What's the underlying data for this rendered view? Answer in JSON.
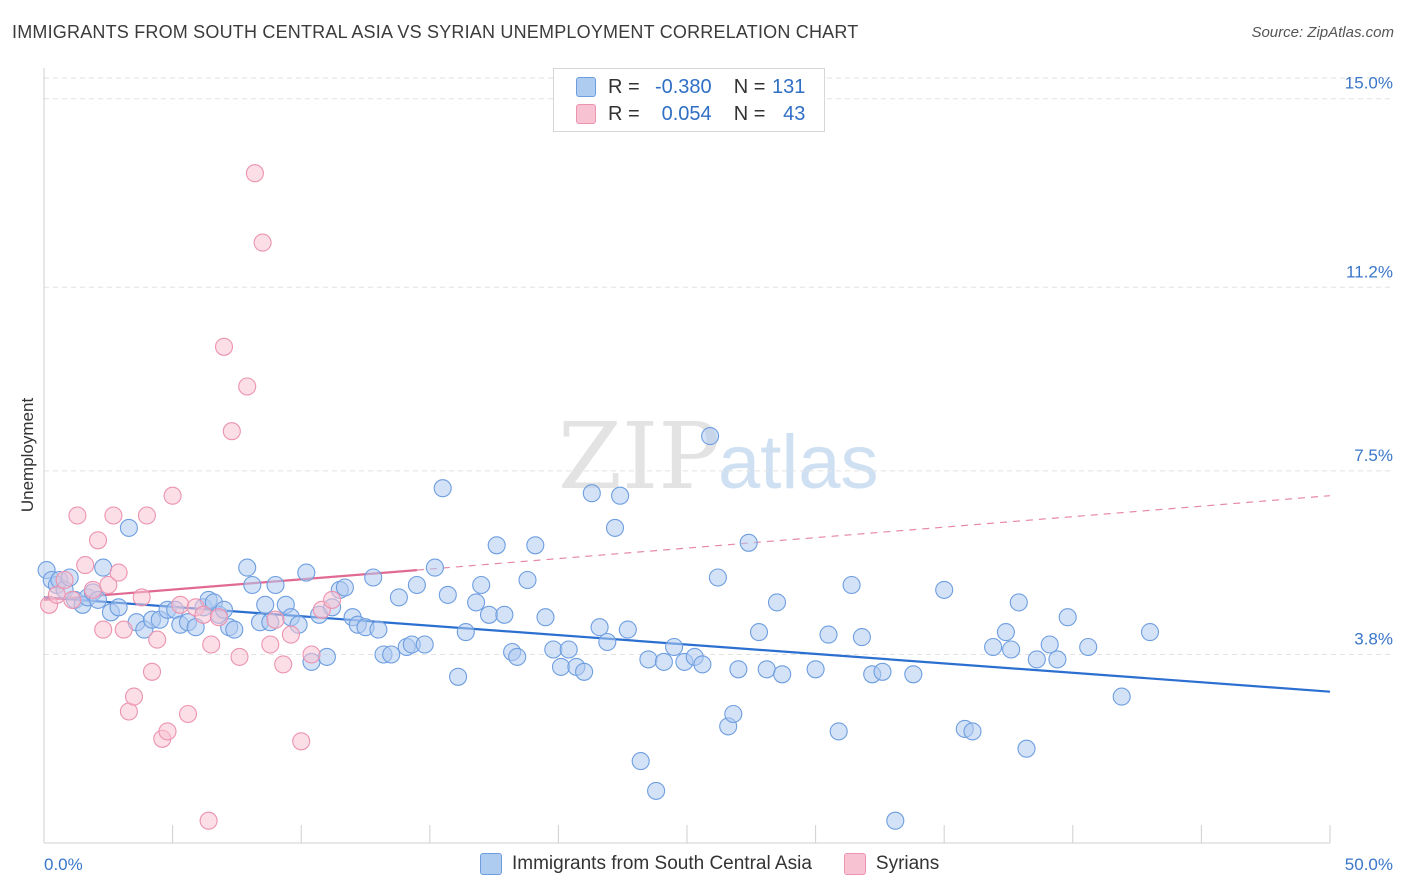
{
  "title": "IMMIGRANTS FROM SOUTH CENTRAL ASIA VS SYRIAN UNEMPLOYMENT CORRELATION CHART",
  "source": "Source: ZipAtlas.com",
  "watermark": {
    "zip": "ZIP",
    "atlas": "atlas"
  },
  "legend": {
    "r_label": "R =",
    "n_label": "N =",
    "rows": [
      {
        "r": "-0.380",
        "n": "131",
        "fill": "#aecbf0",
        "stroke": "#6e9ee0"
      },
      {
        "r": "0.054",
        "n": "43",
        "fill": "#f7c2d2",
        "stroke": "#ec93b0"
      }
    ]
  },
  "chart_data": {
    "type": "scatter",
    "xlabel": "",
    "ylabel": "Unemployment",
    "xlim": [
      0,
      50
    ],
    "ylim": [
      0,
      15.7
    ],
    "x_tick_labels": [
      "0.0%",
      "50.0%"
    ],
    "y_ticks": [
      3.8,
      7.5,
      11.2,
      15.0
    ],
    "y_tick_labels": [
      "3.8%",
      "7.5%",
      "11.2%",
      "15.0%"
    ],
    "grid": "horizontal dashed",
    "legend_position": "top-center and bottom",
    "series": [
      {
        "name": "Immigrants from South Central Asia",
        "color": "#6e9ee0",
        "fill": "#aecbf0",
        "trend": {
          "x": [
            0,
            50
          ],
          "y": [
            4.95,
            3.05
          ],
          "style": "solid",
          "color": "#2b6fd1"
        },
        "points": [
          [
            0.1,
            5.5
          ],
          [
            0.3,
            5.3
          ],
          [
            0.5,
            5.2
          ],
          [
            0.6,
            5.3
          ],
          [
            0.8,
            5.1
          ],
          [
            1.0,
            5.35
          ],
          [
            1.2,
            4.9
          ],
          [
            1.5,
            4.8
          ],
          [
            1.7,
            4.95
          ],
          [
            1.9,
            5.05
          ],
          [
            2.1,
            4.9
          ],
          [
            2.3,
            5.55
          ],
          [
            2.6,
            4.65
          ],
          [
            2.9,
            4.75
          ],
          [
            3.3,
            6.35
          ],
          [
            3.6,
            4.45
          ],
          [
            3.9,
            4.3
          ],
          [
            4.2,
            4.5
          ],
          [
            4.5,
            4.5
          ],
          [
            4.8,
            4.7
          ],
          [
            5.1,
            4.7
          ],
          [
            5.3,
            4.4
          ],
          [
            5.6,
            4.45
          ],
          [
            5.9,
            4.35
          ],
          [
            6.2,
            4.75
          ],
          [
            6.4,
            4.9
          ],
          [
            6.6,
            4.85
          ],
          [
            6.8,
            4.6
          ],
          [
            7.0,
            4.7
          ],
          [
            7.2,
            4.35
          ],
          [
            7.4,
            4.3
          ],
          [
            7.9,
            5.55
          ],
          [
            8.1,
            5.2
          ],
          [
            8.4,
            4.45
          ],
          [
            8.6,
            4.8
          ],
          [
            8.8,
            4.45
          ],
          [
            9.0,
            5.2
          ],
          [
            9.4,
            4.8
          ],
          [
            9.6,
            4.55
          ],
          [
            9.9,
            4.4
          ],
          [
            10.2,
            5.45
          ],
          [
            10.4,
            3.65
          ],
          [
            10.7,
            4.6
          ],
          [
            11.0,
            3.75
          ],
          [
            11.2,
            4.75
          ],
          [
            11.5,
            5.1
          ],
          [
            11.7,
            5.15
          ],
          [
            12.0,
            4.55
          ],
          [
            12.2,
            4.4
          ],
          [
            12.5,
            4.35
          ],
          [
            12.8,
            5.35
          ],
          [
            13.0,
            4.3
          ],
          [
            13.2,
            3.8
          ],
          [
            13.5,
            3.8
          ],
          [
            13.8,
            4.95
          ],
          [
            14.1,
            3.95
          ],
          [
            14.3,
            4.0
          ],
          [
            14.5,
            5.2
          ],
          [
            14.8,
            4.0
          ],
          [
            15.2,
            5.55
          ],
          [
            15.5,
            7.15
          ],
          [
            15.7,
            5.0
          ],
          [
            16.1,
            3.35
          ],
          [
            16.4,
            4.25
          ],
          [
            16.8,
            4.85
          ],
          [
            17.0,
            5.2
          ],
          [
            17.3,
            4.6
          ],
          [
            17.6,
            6.0
          ],
          [
            17.9,
            4.6
          ],
          [
            18.2,
            3.85
          ],
          [
            18.4,
            3.75
          ],
          [
            18.8,
            5.3
          ],
          [
            19.1,
            6.0
          ],
          [
            19.5,
            4.55
          ],
          [
            19.8,
            3.9
          ],
          [
            20.1,
            3.55
          ],
          [
            20.4,
            3.9
          ],
          [
            20.7,
            3.55
          ],
          [
            21.0,
            3.45
          ],
          [
            21.3,
            7.05
          ],
          [
            21.6,
            4.35
          ],
          [
            21.9,
            4.05
          ],
          [
            22.2,
            6.35
          ],
          [
            22.4,
            7.0
          ],
          [
            22.7,
            4.3
          ],
          [
            23.2,
            1.65
          ],
          [
            23.5,
            3.7
          ],
          [
            23.8,
            1.05
          ],
          [
            24.1,
            3.65
          ],
          [
            24.5,
            3.95
          ],
          [
            24.9,
            3.65
          ],
          [
            25.3,
            3.75
          ],
          [
            25.6,
            3.6
          ],
          [
            25.9,
            8.2
          ],
          [
            26.2,
            5.35
          ],
          [
            26.6,
            2.35
          ],
          [
            26.8,
            2.6
          ],
          [
            27.0,
            3.5
          ],
          [
            27.4,
            6.05
          ],
          [
            27.8,
            4.25
          ],
          [
            28.1,
            3.5
          ],
          [
            28.5,
            4.85
          ],
          [
            28.7,
            3.4
          ],
          [
            30.0,
            3.5
          ],
          [
            30.5,
            4.2
          ],
          [
            30.9,
            2.25
          ],
          [
            31.4,
            5.2
          ],
          [
            31.8,
            4.15
          ],
          [
            32.2,
            3.4
          ],
          [
            32.6,
            3.45
          ],
          [
            33.1,
            0.45
          ],
          [
            33.8,
            3.4
          ],
          [
            35.0,
            5.1
          ],
          [
            35.8,
            2.3
          ],
          [
            36.1,
            2.25
          ],
          [
            36.9,
            3.95
          ],
          [
            37.4,
            4.25
          ],
          [
            37.9,
            4.85
          ],
          [
            38.2,
            1.9
          ],
          [
            38.6,
            3.7
          ],
          [
            39.1,
            4.0
          ],
          [
            39.4,
            3.7
          ],
          [
            39.8,
            4.55
          ],
          [
            40.6,
            3.95
          ],
          [
            41.9,
            2.95
          ],
          [
            43.0,
            4.25
          ],
          [
            37.6,
            3.9
          ]
        ]
      },
      {
        "name": "Syrians",
        "color": "#ec93b0",
        "fill": "#f7c2d2",
        "trend": {
          "x": [
            0,
            14.5,
            50
          ],
          "y": [
            4.9,
            5.5,
            7.0
          ],
          "style": "solid-then-dashed",
          "color": "#e06a93"
        },
        "points": [
          [
            0.2,
            4.8
          ],
          [
            0.5,
            5.0
          ],
          [
            0.8,
            5.3
          ],
          [
            1.1,
            4.9
          ],
          [
            1.3,
            6.6
          ],
          [
            1.6,
            5.6
          ],
          [
            1.9,
            5.1
          ],
          [
            2.1,
            6.1
          ],
          [
            2.3,
            4.3
          ],
          [
            2.5,
            5.2
          ],
          [
            2.7,
            6.6
          ],
          [
            2.9,
            5.45
          ],
          [
            3.1,
            4.3
          ],
          [
            3.3,
            2.65
          ],
          [
            3.5,
            2.95
          ],
          [
            3.8,
            4.95
          ],
          [
            4.0,
            6.6
          ],
          [
            4.2,
            3.45
          ],
          [
            4.4,
            4.1
          ],
          [
            4.6,
            2.1
          ],
          [
            4.8,
            2.25
          ],
          [
            5.0,
            7.0
          ],
          [
            5.3,
            4.8
          ],
          [
            5.6,
            2.6
          ],
          [
            5.9,
            4.75
          ],
          [
            6.2,
            4.6
          ],
          [
            6.5,
            4.0
          ],
          [
            6.8,
            4.55
          ],
          [
            7.0,
            10.0
          ],
          [
            7.3,
            8.3
          ],
          [
            7.6,
            3.75
          ],
          [
            7.9,
            9.2
          ],
          [
            8.2,
            13.5
          ],
          [
            8.5,
            12.1
          ],
          [
            8.8,
            4.0
          ],
          [
            9.0,
            4.5
          ],
          [
            9.3,
            3.6
          ],
          [
            9.6,
            4.2
          ],
          [
            10.0,
            2.05
          ],
          [
            10.4,
            3.8
          ],
          [
            10.8,
            4.7
          ],
          [
            11.2,
            4.9
          ],
          [
            6.4,
            0.45
          ]
        ]
      }
    ]
  }
}
